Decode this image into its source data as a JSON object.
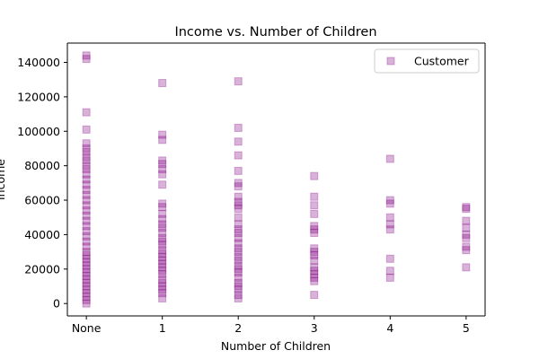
{
  "chart_data": {
    "type": "scatter",
    "title": "Income vs. Number of Children",
    "xlabel": "Number of Children",
    "ylabel": "Income",
    "x_categories": [
      "None",
      "1",
      "2",
      "3",
      "4",
      "5"
    ],
    "y_ticks": [
      0,
      20000,
      40000,
      60000,
      80000,
      100000,
      120000,
      140000
    ],
    "y_tick_labels": [
      "0",
      "20000",
      "40000",
      "60000",
      "80000",
      "100000",
      "120000",
      "140000"
    ],
    "ylim": [
      -7200,
      151200
    ],
    "xlim": [
      -0.25,
      5.25
    ],
    "grid": false,
    "legend_position": "top-right",
    "marker": "square",
    "color": "#800080",
    "alpha": 0.3,
    "series": [
      {
        "name": "Customer",
        "points": [
          {
            "x": 0,
            "y": 144000
          },
          {
            "x": 0,
            "y": 142000
          },
          {
            "x": 0,
            "y": 111000
          },
          {
            "x": 0,
            "y": 101000
          },
          {
            "x": 0,
            "y": 93000
          },
          {
            "x": 0,
            "y": 90000
          },
          {
            "x": 0,
            "y": 88000
          },
          {
            "x": 0,
            "y": 85000
          },
          {
            "x": 0,
            "y": 83000
          },
          {
            "x": 0,
            "y": 80000
          },
          {
            "x": 0,
            "y": 78000
          },
          {
            "x": 0,
            "y": 75000
          },
          {
            "x": 0,
            "y": 72000
          },
          {
            "x": 0,
            "y": 69000
          },
          {
            "x": 0,
            "y": 66000
          },
          {
            "x": 0,
            "y": 63000
          },
          {
            "x": 0,
            "y": 60000
          },
          {
            "x": 0,
            "y": 57000
          },
          {
            "x": 0,
            "y": 54000
          },
          {
            "x": 0,
            "y": 51000
          },
          {
            "x": 0,
            "y": 48000
          },
          {
            "x": 0,
            "y": 45000
          },
          {
            "x": 0,
            "y": 42000
          },
          {
            "x": 0,
            "y": 39000
          },
          {
            "x": 0,
            "y": 36000
          },
          {
            "x": 0,
            "y": 33000
          },
          {
            "x": 0,
            "y": 30000
          },
          {
            "x": 0,
            "y": 28000
          },
          {
            "x": 0,
            "y": 26000
          },
          {
            "x": 0,
            "y": 24000
          },
          {
            "x": 0,
            "y": 22000
          },
          {
            "x": 0,
            "y": 20000
          },
          {
            "x": 0,
            "y": 18000
          },
          {
            "x": 0,
            "y": 16000
          },
          {
            "x": 0,
            "y": 14000
          },
          {
            "x": 0,
            "y": 12000
          },
          {
            "x": 0,
            "y": 10000
          },
          {
            "x": 0,
            "y": 8000
          },
          {
            "x": 0,
            "y": 6000
          },
          {
            "x": 0,
            "y": 4000
          },
          {
            "x": 0,
            "y": 2000
          },
          {
            "x": 0,
            "y": 0
          },
          {
            "x": 1,
            "y": 128000
          },
          {
            "x": 1,
            "y": 98000
          },
          {
            "x": 1,
            "y": 95000
          },
          {
            "x": 1,
            "y": 83000
          },
          {
            "x": 1,
            "y": 81000
          },
          {
            "x": 1,
            "y": 78000
          },
          {
            "x": 1,
            "y": 75000
          },
          {
            "x": 1,
            "y": 69000
          },
          {
            "x": 1,
            "y": 58000
          },
          {
            "x": 1,
            "y": 56000
          },
          {
            "x": 1,
            "y": 52000
          },
          {
            "x": 1,
            "y": 49000
          },
          {
            "x": 1,
            "y": 46000
          },
          {
            "x": 1,
            "y": 44000
          },
          {
            "x": 1,
            "y": 41000
          },
          {
            "x": 1,
            "y": 38000
          },
          {
            "x": 1,
            "y": 36000
          },
          {
            "x": 1,
            "y": 34000
          },
          {
            "x": 1,
            "y": 31000
          },
          {
            "x": 1,
            "y": 29000
          },
          {
            "x": 1,
            "y": 27000
          },
          {
            "x": 1,
            "y": 25000
          },
          {
            "x": 1,
            "y": 23000
          },
          {
            "x": 1,
            "y": 21000
          },
          {
            "x": 1,
            "y": 19000
          },
          {
            "x": 1,
            "y": 17000
          },
          {
            "x": 1,
            "y": 14000
          },
          {
            "x": 1,
            "y": 12000
          },
          {
            "x": 1,
            "y": 10000
          },
          {
            "x": 1,
            "y": 8000
          },
          {
            "x": 1,
            "y": 6000
          },
          {
            "x": 1,
            "y": 3000
          },
          {
            "x": 2,
            "y": 129000
          },
          {
            "x": 2,
            "y": 102000
          },
          {
            "x": 2,
            "y": 94000
          },
          {
            "x": 2,
            "y": 86000
          },
          {
            "x": 2,
            "y": 77000
          },
          {
            "x": 2,
            "y": 70000
          },
          {
            "x": 2,
            "y": 68000
          },
          {
            "x": 2,
            "y": 62000
          },
          {
            "x": 2,
            "y": 59000
          },
          {
            "x": 2,
            "y": 57000
          },
          {
            "x": 2,
            "y": 55000
          },
          {
            "x": 2,
            "y": 50000
          },
          {
            "x": 2,
            "y": 46000
          },
          {
            "x": 2,
            "y": 43000
          },
          {
            "x": 2,
            "y": 41000
          },
          {
            "x": 2,
            "y": 38000
          },
          {
            "x": 2,
            "y": 35000
          },
          {
            "x": 2,
            "y": 32000
          },
          {
            "x": 2,
            "y": 30000
          },
          {
            "x": 2,
            "y": 27000
          },
          {
            "x": 2,
            "y": 25000
          },
          {
            "x": 2,
            "y": 22000
          },
          {
            "x": 2,
            "y": 20000
          },
          {
            "x": 2,
            "y": 18000
          },
          {
            "x": 2,
            "y": 15000
          },
          {
            "x": 2,
            "y": 12000
          },
          {
            "x": 2,
            "y": 10000
          },
          {
            "x": 2,
            "y": 8000
          },
          {
            "x": 2,
            "y": 5000
          },
          {
            "x": 2,
            "y": 3000
          },
          {
            "x": 3,
            "y": 74000
          },
          {
            "x": 3,
            "y": 62000
          },
          {
            "x": 3,
            "y": 57000
          },
          {
            "x": 3,
            "y": 52000
          },
          {
            "x": 3,
            "y": 45000
          },
          {
            "x": 3,
            "y": 43000
          },
          {
            "x": 3,
            "y": 41000
          },
          {
            "x": 3,
            "y": 32000
          },
          {
            "x": 3,
            "y": 30000
          },
          {
            "x": 3,
            "y": 28000
          },
          {
            "x": 3,
            "y": 25000
          },
          {
            "x": 3,
            "y": 21000
          },
          {
            "x": 3,
            "y": 19000
          },
          {
            "x": 3,
            "y": 17000
          },
          {
            "x": 3,
            "y": 15000
          },
          {
            "x": 3,
            "y": 13000
          },
          {
            "x": 3,
            "y": 5000
          },
          {
            "x": 4,
            "y": 84000
          },
          {
            "x": 4,
            "y": 60000
          },
          {
            "x": 4,
            "y": 58000
          },
          {
            "x": 4,
            "y": 50000
          },
          {
            "x": 4,
            "y": 46000
          },
          {
            "x": 4,
            "y": 43000
          },
          {
            "x": 4,
            "y": 26000
          },
          {
            "x": 4,
            "y": 19000
          },
          {
            "x": 4,
            "y": 15000
          },
          {
            "x": 5,
            "y": 56000
          },
          {
            "x": 5,
            "y": 55000
          },
          {
            "x": 5,
            "y": 48000
          },
          {
            "x": 5,
            "y": 44000
          },
          {
            "x": 5,
            "y": 40000
          },
          {
            "x": 5,
            "y": 38000
          },
          {
            "x": 5,
            "y": 33000
          },
          {
            "x": 5,
            "y": 31000
          },
          {
            "x": 5,
            "y": 21000
          }
        ]
      }
    ]
  }
}
